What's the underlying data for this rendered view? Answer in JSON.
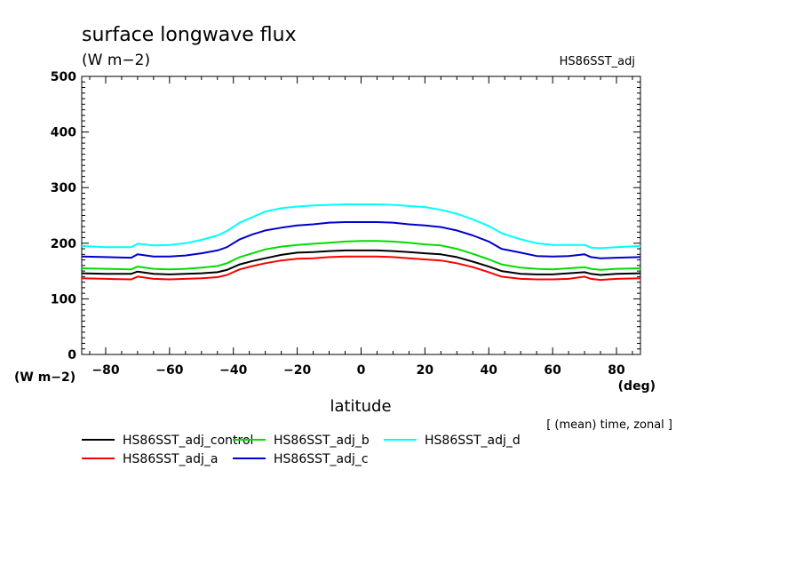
{
  "chart_data": {
    "type": "line",
    "title": "surface longwave flux",
    "units": "(W m−2)",
    "dataset_label": "HS86SST_adj",
    "xlabel": "latitude",
    "x_unit_label": "(deg)",
    "y_unit_label": "(W m−2)",
    "note": "[ (mean) time, zonal ]",
    "xlim": [
      -87.5,
      87.5
    ],
    "ylim": [
      0,
      500
    ],
    "x_ticks": [
      -80,
      -60,
      -40,
      -20,
      0,
      20,
      40,
      60,
      80
    ],
    "x_tick_labels": [
      "−80",
      "−60",
      "−40",
      "−20",
      "0",
      "20",
      "40",
      "60",
      "80"
    ],
    "y_ticks": [
      0,
      100,
      200,
      300,
      400,
      500
    ],
    "y_tick_labels": [
      "0",
      "100",
      "200",
      "300",
      "400",
      "500"
    ],
    "x": [
      -87.5,
      -80,
      -72,
      -70,
      -65,
      -60,
      -55,
      -50,
      -45,
      -42,
      -38,
      -34,
      -30,
      -25,
      -20,
      -15,
      -10,
      -5,
      0,
      5,
      10,
      15,
      20,
      25,
      30,
      35,
      40,
      44,
      50,
      55,
      60,
      65,
      70,
      72,
      75,
      80,
      87.5
    ],
    "series": [
      {
        "name": "HS86SST_adj_control",
        "color": "#000000",
        "values": [
          146,
          145,
          145,
          149,
          145,
          144,
          145,
          146,
          148,
          152,
          162,
          168,
          173,
          179,
          183,
          184,
          186,
          187,
          187,
          187,
          186,
          184,
          182,
          180,
          175,
          167,
          158,
          150,
          145,
          144,
          144,
          146,
          148,
          145,
          143,
          145,
          146
        ]
      },
      {
        "name": "HS86SST_adj_a",
        "color": "#ff0000",
        "values": [
          137,
          136,
          135,
          140,
          136,
          135,
          136,
          137,
          139,
          143,
          153,
          159,
          164,
          169,
          172,
          173,
          175,
          176,
          176,
          176,
          175,
          173,
          171,
          169,
          164,
          157,
          148,
          140,
          136,
          135,
          135,
          136,
          140,
          136,
          134,
          136,
          137
        ]
      },
      {
        "name": "HS86SST_adj_b",
        "color": "#00dd00",
        "values": [
          155,
          154,
          153,
          158,
          154,
          153,
          154,
          156,
          159,
          164,
          175,
          182,
          189,
          194,
          197,
          199,
          201,
          203,
          204,
          204,
          203,
          201,
          198,
          196,
          190,
          181,
          171,
          162,
          156,
          154,
          153,
          155,
          157,
          154,
          152,
          154,
          155
        ]
      },
      {
        "name": "HS86SST_adj_c",
        "color": "#0000cc",
        "values": [
          176,
          175,
          174,
          180,
          176,
          176,
          178,
          182,
          187,
          193,
          207,
          216,
          223,
          228,
          232,
          234,
          237,
          238,
          238,
          238,
          237,
          234,
          232,
          229,
          223,
          214,
          203,
          190,
          183,
          177,
          176,
          177,
          180,
          175,
          173,
          174,
          175
        ]
      },
      {
        "name": "HS86SST_adj_d",
        "color": "#00ffff",
        "values": [
          195,
          193,
          193,
          199,
          196,
          197,
          200,
          206,
          214,
          222,
          237,
          247,
          257,
          263,
          266,
          268,
          269,
          270,
          270,
          270,
          269,
          267,
          265,
          260,
          253,
          243,
          231,
          218,
          207,
          200,
          197,
          197,
          197,
          192,
          191,
          193,
          195
        ]
      }
    ]
  }
}
